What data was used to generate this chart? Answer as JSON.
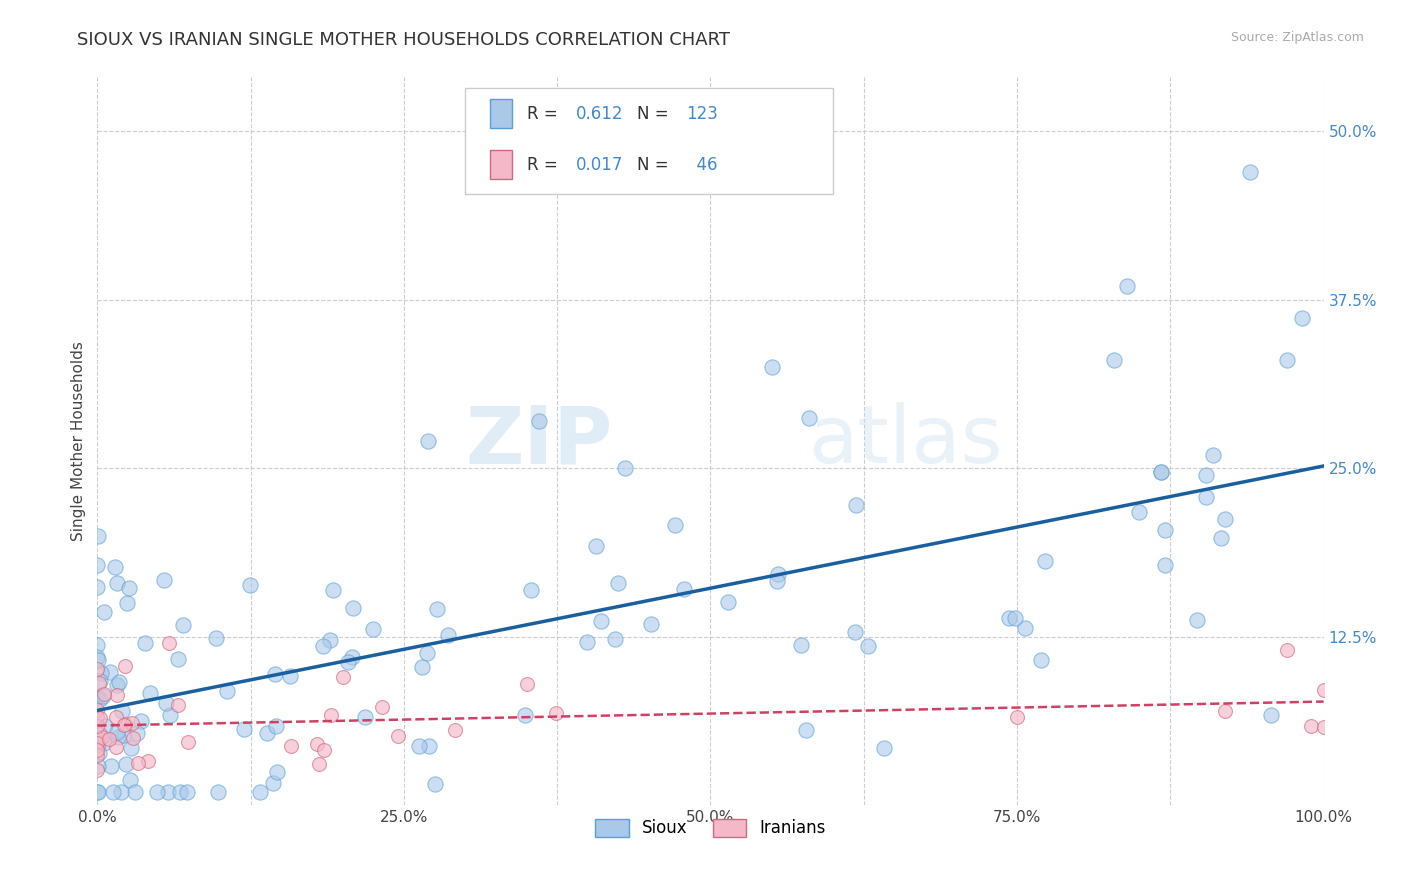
{
  "title": "SIOUX VS IRANIAN SINGLE MOTHER HOUSEHOLDS CORRELATION CHART",
  "source": "Source: ZipAtlas.com",
  "ylabel": "Single Mother Households",
  "xlim": [
    0,
    1
  ],
  "ylim": [
    0,
    0.54
  ],
  "yticks": [
    0.0,
    0.125,
    0.25,
    0.375,
    0.5
  ],
  "ytick_labels": [
    "",
    "12.5%",
    "25.0%",
    "37.5%",
    "50.0%"
  ],
  "xtick_labels": [
    "0.0%",
    "",
    "25.0%",
    "",
    "50.0%",
    "",
    "75.0%",
    "",
    "100.0%"
  ],
  "xticks": [
    0.0,
    0.125,
    0.25,
    0.375,
    0.5,
    0.625,
    0.75,
    0.875,
    1.0
  ],
  "sioux_color": "#aac8e8",
  "sioux_edge": "#5a9fd4",
  "iranian_color": "#f4b8c8",
  "iranian_edge": "#d06880",
  "trend_sioux_color": "#1a5fa0",
  "trend_iranian_color": "#d04060",
  "R_sioux": 0.612,
  "N_sioux": 123,
  "R_iranian": 0.017,
  "N_iranian": 46,
  "legend_labels": [
    "Sioux",
    "Iranians"
  ],
  "watermark": "ZIPatlas",
  "background_color": "#ffffff",
  "grid_color": "#c8c8c8",
  "title_fontsize": 13,
  "label_fontsize": 11,
  "tick_fontsize": 11,
  "ytick_color": "#4488cc",
  "xtick_color": "#444444"
}
